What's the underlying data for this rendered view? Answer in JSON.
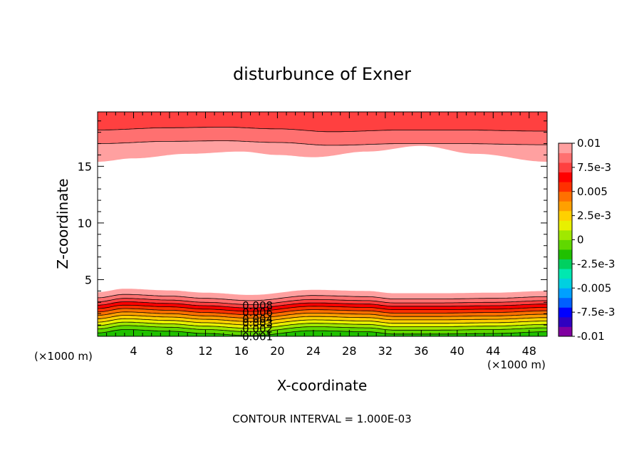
{
  "chart_data": {
    "type": "contour",
    "title": "disturbunce of Exner",
    "xlabel": "X-coordinate",
    "ylabel": "Z-coordinate",
    "x_unit_left": "(×1000 m)",
    "x_unit_right": "(×1000 m)",
    "xlim": [
      0,
      50
    ],
    "ylim": [
      0,
      19.8
    ],
    "x_ticks": [
      "4",
      "8",
      "12",
      "16",
      "20",
      "24",
      "28",
      "32",
      "36",
      "40",
      "44",
      "48"
    ],
    "y_ticks": [
      "5",
      "10",
      "15"
    ],
    "footer": "CONTOUR INTERVAL = 1.000E-03",
    "contour_labels": [
      "0.008",
      "0.006",
      "0.004",
      "0.003",
      "0.002",
      "0.001"
    ],
    "colorbar": {
      "labels": [
        "0.01",
        "7.5e-3",
        "0.005",
        "2.5e-3",
        "0",
        "-2.5e-3",
        "-0.005",
        "-7.5e-3",
        "-0.01"
      ],
      "range": [
        -0.01,
        0.01
      ],
      "colors": [
        "#8000a0",
        "#3000c0",
        "#0000ff",
        "#0060ff",
        "#00a0ff",
        "#00d0e0",
        "#00e8b0",
        "#00d060",
        "#20c000",
        "#60d800",
        "#a0e800",
        "#e8f000",
        "#ffd000",
        "#ffa000",
        "#ff7000",
        "#ff3000",
        "#ff0000",
        "#ff4040",
        "#ff7070",
        "#ffa0a0"
      ]
    },
    "bottom_band_colors": [
      "#20c000",
      "#60d800",
      "#a0e800",
      "#e8f000",
      "#ffd000",
      "#ffa000",
      "#ff7000",
      "#ff3000",
      "#ff0000",
      "#ff4040",
      "#ff7070",
      "#ffa0a0"
    ],
    "top_band_colors": [
      "#ffa0a0",
      "#ff7070",
      "#ff4040"
    ],
    "bottom_band_boundaries_z": [
      0.25,
      0.6,
      0.9,
      1.2,
      1.5,
      1.8,
      2.1,
      2.4,
      2.7,
      3.0,
      3.35,
      3.85
    ],
    "top_band_boundaries_z": [
      17.0,
      18.2
    ],
    "top_white_edge_z": [
      [
        0,
        15.4
      ],
      [
        4,
        15.7
      ],
      [
        10,
        16.1
      ],
      [
        16,
        16.3
      ],
      [
        20,
        16.0
      ],
      [
        24,
        15.8
      ],
      [
        30,
        16.3
      ],
      [
        36,
        16.8
      ],
      [
        42,
        16.1
      ],
      [
        50,
        15.4
      ]
    ],
    "bottom_relief_z": [
      [
        0,
        0.05
      ],
      [
        3,
        0.35
      ],
      [
        8,
        0.2
      ],
      [
        12,
        0.0
      ],
      [
        17,
        -0.2
      ],
      [
        24,
        0.25
      ],
      [
        30,
        0.15
      ],
      [
        33,
        -0.05
      ],
      [
        38,
        -0.05
      ],
      [
        44,
        0.0
      ],
      [
        50,
        0.15
      ]
    ],
    "top_relief_z": [
      [
        0,
        0.0
      ],
      [
        8,
        0.2
      ],
      [
        14,
        0.25
      ],
      [
        20,
        0.1
      ],
      [
        26,
        -0.15
      ],
      [
        34,
        0.0
      ],
      [
        40,
        0.0
      ],
      [
        50,
        -0.1
      ]
    ]
  }
}
